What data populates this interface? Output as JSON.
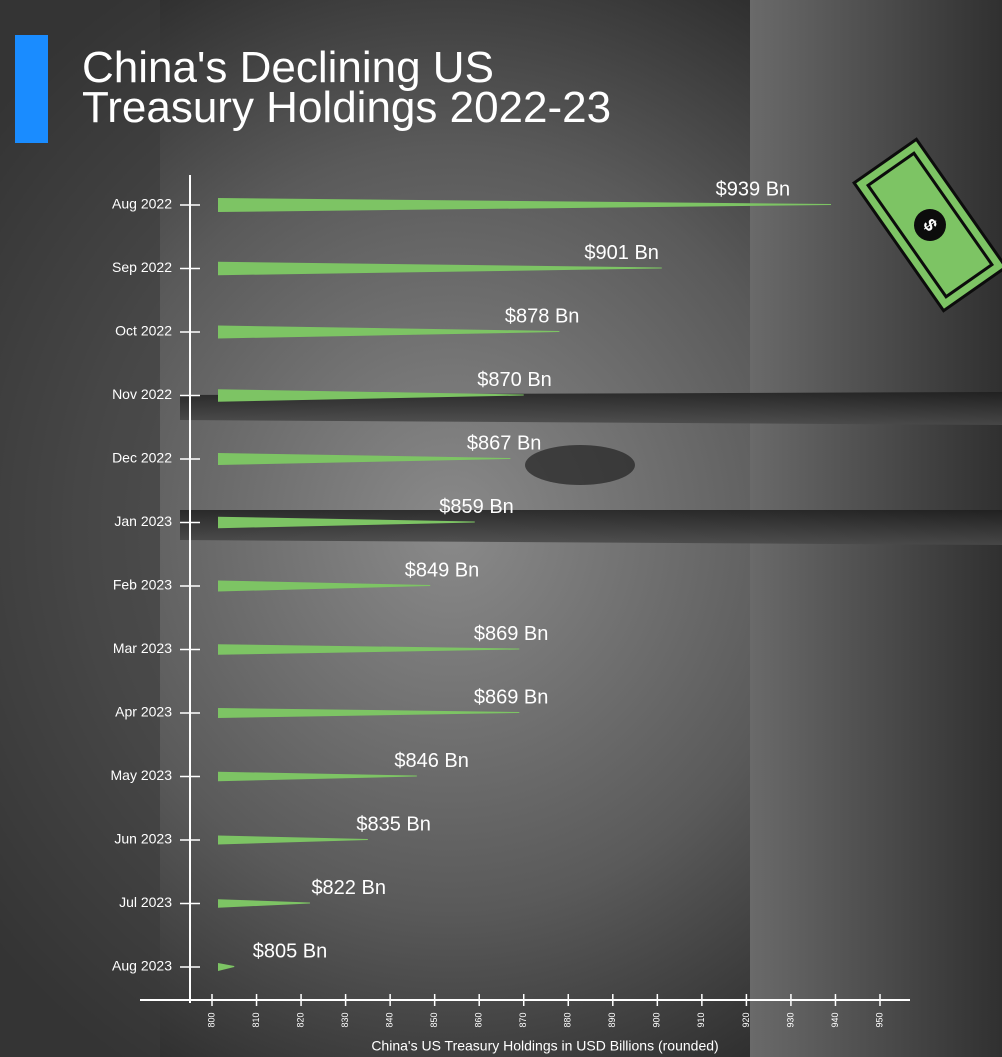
{
  "chart_data": {
    "type": "bar",
    "orientation": "horizontal",
    "title": "China's Declining US Treasury Holdings 2022-23",
    "x_label": "China's US Treasury Holdings in USD Billions (rounded)",
    "categories": [
      "Aug 2022",
      "Sep 2022",
      "Oct 2022",
      "Nov 2022",
      "Dec 2022",
      "Jan 2023",
      "Feb 2023",
      "Mar 2023",
      "Apr 2023",
      "May 2023",
      "Jun 2023",
      "Jul 2023",
      "Aug 2023"
    ],
    "values": [
      939,
      901,
      878,
      870,
      867,
      859,
      849,
      869,
      869,
      846,
      835,
      822,
      805
    ],
    "value_labels": [
      "$939 Bn",
      "$901 Bn",
      "$878 Bn",
      "$870 Bn",
      "$867 Bn",
      "$859 Bn",
      "$849 Bn",
      "$869 Bn",
      "$869 Bn",
      "$846 Bn",
      "$835 Bn",
      "$822 Bn",
      "$805 Bn"
    ],
    "color": "#7dc464",
    "xlim": [
      800,
      950
    ],
    "xticks": [
      800,
      810,
      820,
      830,
      840,
      850,
      860,
      870,
      880,
      890,
      900,
      910,
      920,
      930,
      940,
      950
    ]
  }
}
